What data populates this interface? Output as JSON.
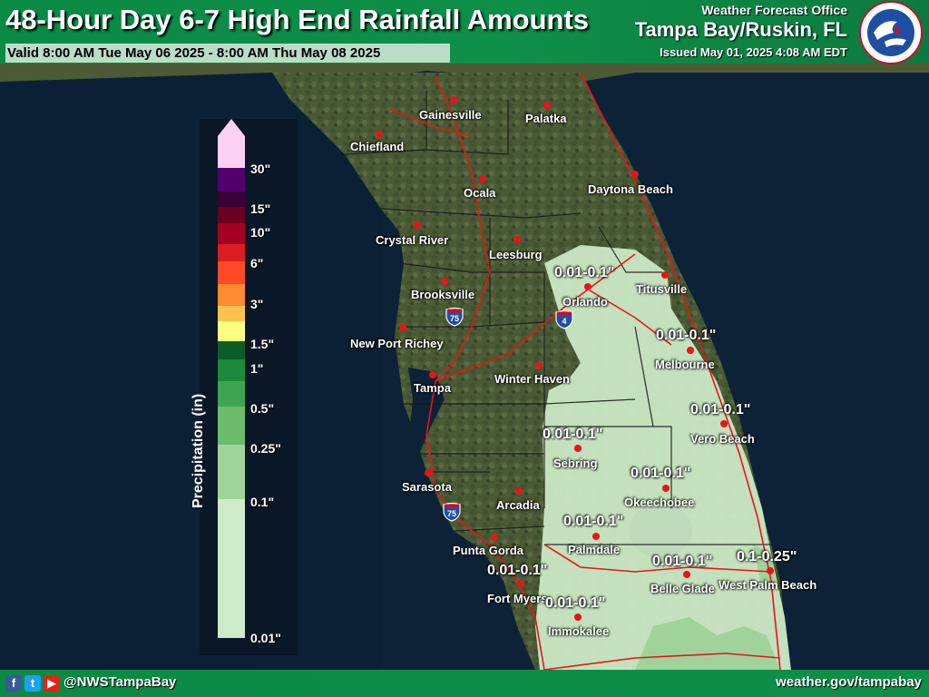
{
  "header": {
    "title": "48-Hour Day 6-7 High End Rainfall Amounts",
    "valid": "Valid 8:00 AM Tue May 06 2025 - 8:00 AM Thu May 08 2025",
    "office_small": "Weather Forecast Office",
    "office_big": "Tampa Bay/Ruskin, FL",
    "issued": "Issued May 01, 2025 4:08 AM EDT",
    "logo_text": "NATIONAL WEATHER SERVICE"
  },
  "legend": {
    "title": "Precipitation (in)",
    "ticks": [
      "30\"",
      "15\"",
      "10\"",
      "6\"",
      "3\"",
      "1.5\"",
      "1\"",
      "0.5\"",
      "0.25\"",
      "0.1\"",
      "0.01\""
    ],
    "colors": [
      "#fbd0f3",
      "#52006e",
      "#3a0038",
      "#6b0020",
      "#a50022",
      "#d71f1f",
      "#ff4a26",
      "#ff8a30",
      "#ffc34d",
      "#ffff80",
      "#0b5e27",
      "#1b8a3a",
      "#3ea650",
      "#6bbb6b",
      "#9fd39a",
      "#cdebc8"
    ]
  },
  "cities": [
    {
      "name": "Gainesville"
    },
    {
      "name": "Palatka"
    },
    {
      "name": "Chiefland"
    },
    {
      "name": "Ocala"
    },
    {
      "name": "Daytona Beach"
    },
    {
      "name": "Crystal River"
    },
    {
      "name": "Leesburg"
    },
    {
      "name": "Titusville"
    },
    {
      "name": "Orlando"
    },
    {
      "name": "Brooksville"
    },
    {
      "name": "New Port Richey"
    },
    {
      "name": "Melbourne"
    },
    {
      "name": "Tampa"
    },
    {
      "name": "Winter Haven"
    },
    {
      "name": "Vero Beach"
    },
    {
      "name": "Sebring"
    },
    {
      "name": "Sarasota"
    },
    {
      "name": "Arcadia"
    },
    {
      "name": "Okeechobee"
    },
    {
      "name": "Punta Gorda"
    },
    {
      "name": "Palmdale"
    },
    {
      "name": "Fort Myers"
    },
    {
      "name": "Belle Glade"
    },
    {
      "name": "West Palm Beach"
    },
    {
      "name": "Immokalee"
    }
  ],
  "amounts": [
    "0.01-0.1\"",
    "0.01-0.1\"",
    "0.01-0.1\"",
    "0.01-0.1\"",
    "0.01-0.1\"",
    "0.01-0.1\"",
    "0.01-0.1\"",
    "0.01-0.1\"",
    "0.1-0.25\"",
    "0.01-0.1\""
  ],
  "shields": [
    "75",
    "4",
    "75"
  ],
  "footer": {
    "handle": "@NWSTampaBay",
    "website": "weather.gov/tampabay",
    "icons": [
      "facebook-icon",
      "twitter-icon",
      "youtube-icon"
    ]
  }
}
